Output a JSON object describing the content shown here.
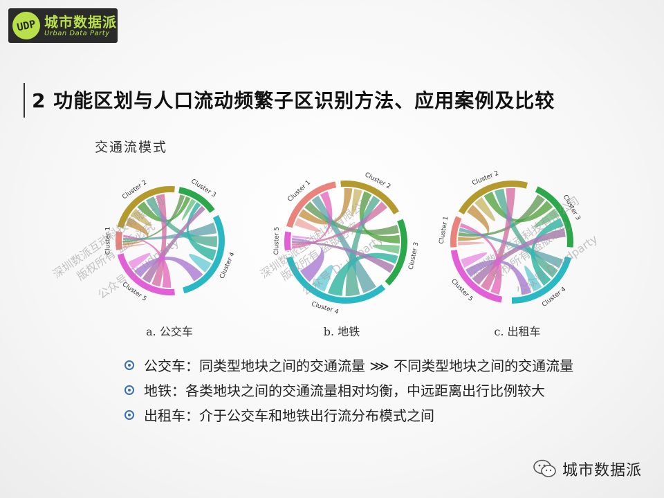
{
  "logo": {
    "mark": "UDP",
    "cn": "城市数据派",
    "en": "Urban Data Party"
  },
  "title": "2 功能区划与人口流动频繁子区识别方法、应用案例及比较",
  "subtitle": "交通流模式",
  "figures": [
    {
      "caption": "a. 公交车",
      "clusters": [
        "Cluster 1",
        "Cluster 2",
        "Cluster 3",
        "Cluster 4",
        "Cluster 5"
      ]
    },
    {
      "caption": "b. 地铁",
      "clusters": [
        "Cluster 1",
        "Cluster 2",
        "Cluster 3",
        "Cluster 4",
        "Cluster 5"
      ]
    },
    {
      "caption": "c. 出租车",
      "clusters": [
        "Cluster 1",
        "Cluster 2",
        "Cluster 3",
        "Cluster 4",
        "Cluster 5"
      ]
    }
  ],
  "colors": {
    "c1": "#e9837c",
    "c2": "#b49a2c",
    "c3": "#2aa84a",
    "c4": "#2ab8c4",
    "c5": "#e35fd8"
  },
  "bullets": [
    "公交车：同类型地块之间的交通流量 ⋙ 不同类型地块之间的交通流量",
    "地铁：各类地块之间的交通流量相对均衡，中远距离出行比例较大",
    "出租车：介于公交车和地铁出行流分布模式之间"
  ],
  "footer": {
    "text": "城市数据派",
    "icon": "wechat-icon"
  },
  "watermarks": [
    "深圳数派互动科技有限公司",
    "版权所有 盗版必究",
    "公众号 D: udparty"
  ]
}
